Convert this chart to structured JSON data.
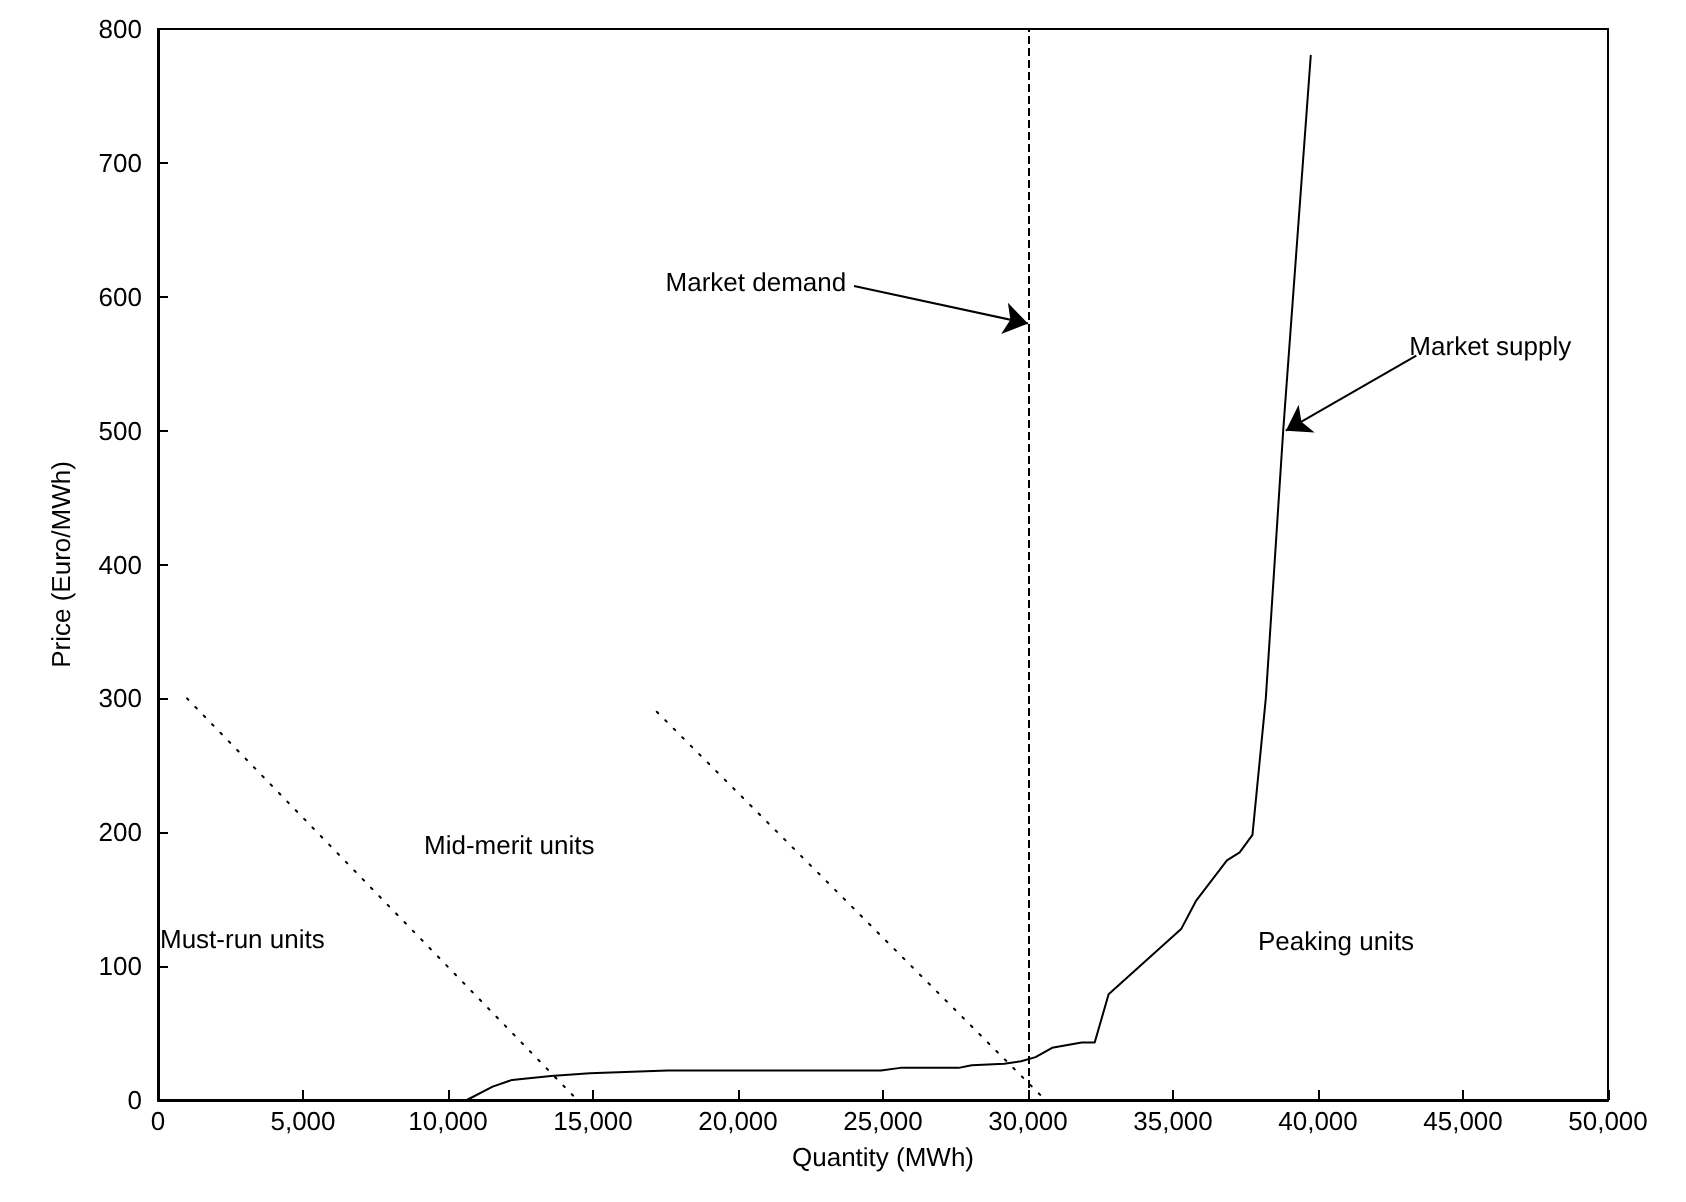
{
  "chart_data": {
    "type": "line",
    "xlabel": "Quantity (MWh)",
    "ylabel": "Price (Euro/MWh)",
    "xlim": [
      0,
      50000
    ],
    "ylim": [
      0,
      800
    ],
    "xticks": [
      0,
      {
        "value": 5000,
        "label": "5,000"
      },
      {
        "value": 10000,
        "label": "10,000"
      },
      {
        "value": 15000,
        "label": "15,000"
      },
      {
        "value": 20000,
        "label": "20,000"
      },
      {
        "value": 25000,
        "label": "25,000"
      },
      {
        "value": 30000,
        "label": "30,000"
      },
      {
        "value": 35000,
        "label": "35,000"
      },
      {
        "value": 40000,
        "label": "40,000"
      },
      {
        "value": 45000,
        "label": "45,000"
      },
      {
        "value": 50000,
        "label": "50,000"
      }
    ],
    "yticks": [
      0,
      100,
      200,
      300,
      400,
      500,
      600,
      700,
      800
    ],
    "grid": false,
    "marker": "none",
    "series": [
      {
        "color": "#000000",
        "line_style": "solid",
        "x": [
          10650,
          11540,
          12210,
          13550,
          14890,
          17570,
          24930,
          25600,
          27610,
          28060,
          29180,
          29760,
          30260,
          30830,
          31850,
          32300,
          32780,
          35290,
          35800,
          36860,
          37300,
          37740,
          38200,
          38800,
          39750
        ],
        "values": [
          0,
          10,
          15,
          18,
          20,
          22,
          22,
          24,
          24,
          26,
          27,
          29,
          32,
          39,
          43,
          43,
          79,
          128,
          149,
          179,
          185,
          198,
          300,
          500,
          780
        ]
      },
      {
        "color": "#000000",
        "line_style": "dotted",
        "x": [
          1000,
          14460
        ],
        "values": [
          300,
          0
        ]
      },
      {
        "color": "#000000",
        "line_style": "dotted",
        "x": [
          17200,
          30600
        ],
        "values": [
          290,
          0
        ]
      }
    ],
    "ref_lines": [
      {
        "axis": "x",
        "value": 30000,
        "color": "#000000",
        "line_style": "dashed"
      }
    ],
    "annotations": [
      {
        "text": "Market demand",
        "x": 30000,
        "y": 580
      },
      {
        "text": "Market supply",
        "x": 38890,
        "y": 500
      },
      "Must-run units",
      "Mid-merit units",
      "Peaking units"
    ]
  }
}
